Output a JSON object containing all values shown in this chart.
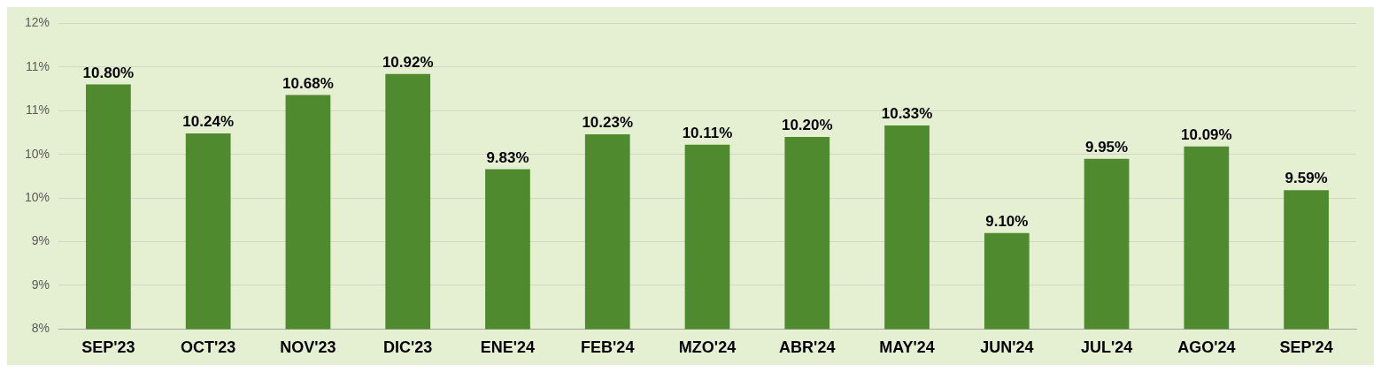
{
  "chart_data": {
    "type": "bar",
    "categories": [
      "SEP'23",
      "OCT'23",
      "NOV'23",
      "DIC'23",
      "ENE'24",
      "FEB'24",
      "MZO'24",
      "ABR'24",
      "MAY'24",
      "JUN'24",
      "JUL'24",
      "AGO'24",
      "SEP'24"
    ],
    "values": [
      10.8,
      10.24,
      10.68,
      10.92,
      9.83,
      10.23,
      10.11,
      10.2,
      10.33,
      9.1,
      9.95,
      10.09,
      9.59
    ],
    "value_labels": [
      "10.80%",
      "10.24%",
      "10.68%",
      "10.92%",
      "9.83%",
      "10.23%",
      "10.11%",
      "10.20%",
      "10.33%",
      "9.10%",
      "9.95%",
      "10.09%",
      "9.59%"
    ],
    "color": "#4f8a2e",
    "ylim": [
      8,
      11.5
    ],
    "yticks": [
      {
        "value": 8,
        "label": "8%"
      },
      {
        "value": 8.5,
        "label": "9%"
      },
      {
        "value": 9,
        "label": "9%"
      },
      {
        "value": 9.5,
        "label": "10%"
      },
      {
        "value": 10,
        "label": "10%"
      },
      {
        "value": 10.5,
        "label": "11%"
      },
      {
        "value": 11,
        "label": "11%"
      },
      {
        "value": 11.5,
        "label": "12%"
      }
    ],
    "grid": "y",
    "legend": false
  }
}
